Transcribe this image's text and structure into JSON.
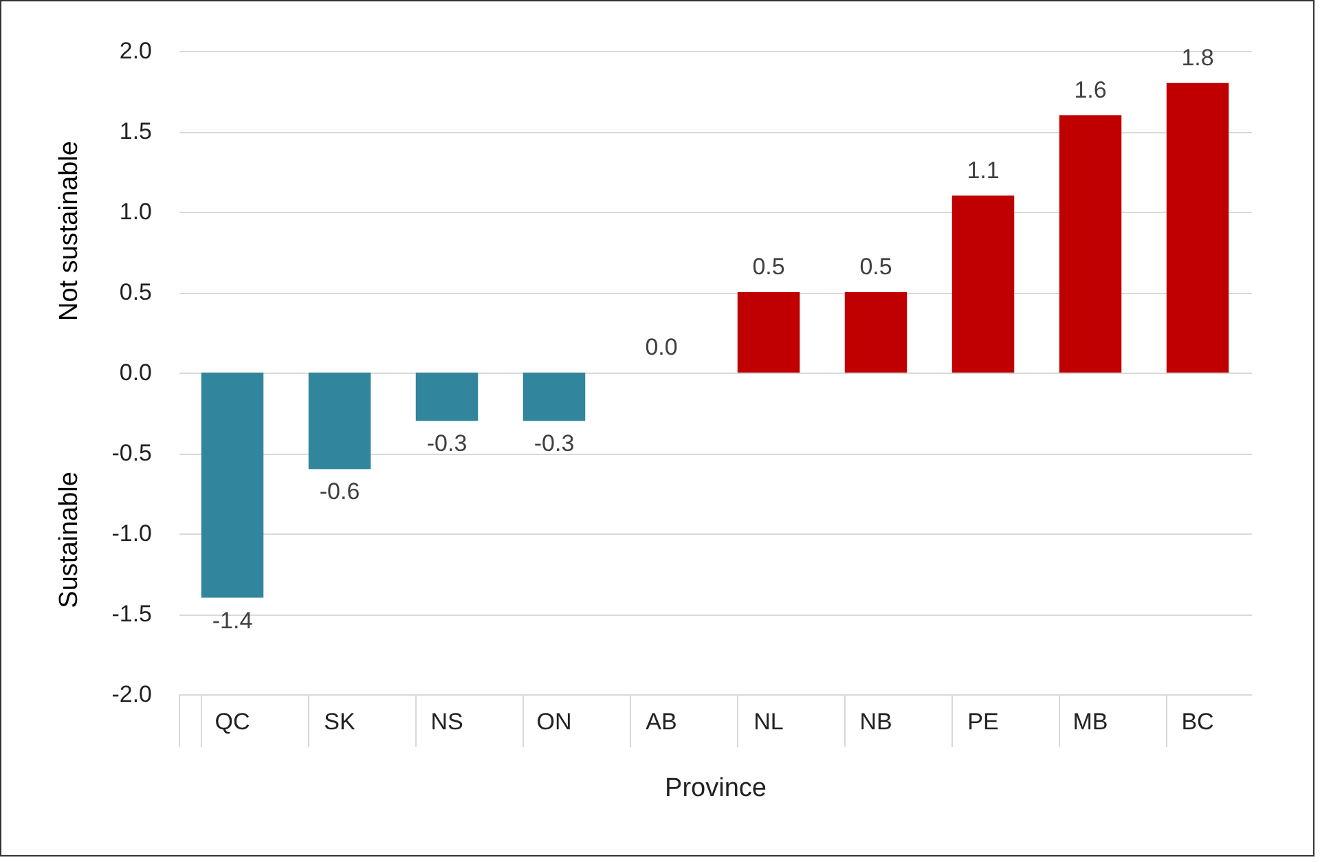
{
  "chart_data": {
    "type": "bar",
    "xlabel": "Province",
    "annotations": [
      "Not sustainable",
      "Sustainable"
    ],
    "categories": [
      "QC",
      "SK",
      "NS",
      "ON",
      "AB",
      "NL",
      "NB",
      "PE",
      "MB",
      "BC"
    ],
    "values": [
      -1.4,
      -0.6,
      -0.3,
      -0.3,
      0.0,
      0.5,
      0.5,
      1.1,
      1.6,
      1.8
    ],
    "value_labels": [
      "-1.4",
      "-0.6",
      "-0.3",
      "-0.3",
      "0.0",
      "0.5",
      "0.5",
      "1.1",
      "1.6",
      "1.8"
    ],
    "colors": [
      "#31859c",
      "#31859c",
      "#31859c",
      "#31859c",
      "#31859c",
      "#c00000",
      "#c00000",
      "#c00000",
      "#c00000",
      "#c00000"
    ],
    "ylim": [
      -2,
      2
    ],
    "yticks": [
      {
        "value": -2,
        "label": "-2.0"
      },
      {
        "value": -1.5,
        "label": "-1.5"
      },
      {
        "value": -1,
        "label": "-1.0"
      },
      {
        "value": -0.5,
        "label": "-0.5"
      },
      {
        "value": 0,
        "label": "0.0"
      },
      {
        "value": 0.5,
        "label": "0.5"
      },
      {
        "value": 1,
        "label": "1.0"
      },
      {
        "value": 1.5,
        "label": "1.5"
      },
      {
        "value": 2,
        "label": "2.0"
      }
    ],
    "grid": "y"
  }
}
